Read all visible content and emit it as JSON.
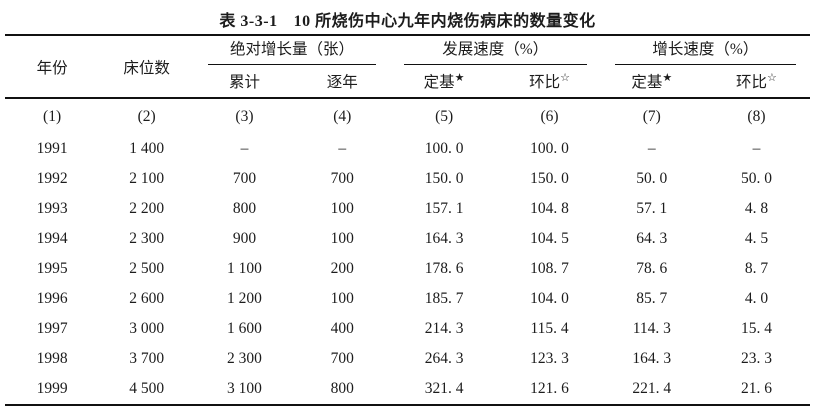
{
  "title": {
    "tag": "表 3-3-1",
    "text": "10 所烧伤中心九年内烧伤病床的数量变化"
  },
  "table": {
    "header": {
      "col_year": "年份",
      "col_beds": "床位数",
      "groups": [
        {
          "label": "绝对增长量（张）",
          "subs": [
            {
              "text": "累计",
              "mark": ""
            },
            {
              "text": "逐年",
              "mark": ""
            }
          ]
        },
        {
          "label": "发展速度（%）",
          "subs": [
            {
              "text": "定基",
              "mark": "★"
            },
            {
              "text": "环比",
              "mark": "☆"
            }
          ]
        },
        {
          "label": "增长速度（%）",
          "subs": [
            {
              "text": "定基",
              "mark": "★"
            },
            {
              "text": "环比",
              "mark": "☆"
            }
          ]
        }
      ],
      "col_numbers": [
        "(1)",
        "(2)",
        "(3)",
        "(4)",
        "(5)",
        "(6)",
        "(7)",
        "(8)"
      ]
    },
    "rows": [
      [
        "1991",
        "1 400",
        "–",
        "–",
        "100. 0",
        "100. 0",
        "–",
        "–"
      ],
      [
        "1992",
        "2 100",
        "700",
        "700",
        "150. 0",
        "150. 0",
        "50. 0",
        "50. 0"
      ],
      [
        "1993",
        "2 200",
        "800",
        "100",
        "157. 1",
        "104. 8",
        "57. 1",
        "4. 8"
      ],
      [
        "1994",
        "2 300",
        "900",
        "100",
        "164. 3",
        "104. 5",
        "64. 3",
        "4. 5"
      ],
      [
        "1995",
        "2 500",
        "1 100",
        "200",
        "178. 6",
        "108. 7",
        "78. 6",
        "8. 7"
      ],
      [
        "1996",
        "2 600",
        "1 200",
        "100",
        "185. 7",
        "104. 0",
        "85. 7",
        "4. 0"
      ],
      [
        "1997",
        "3 000",
        "1 600",
        "400",
        "214. 3",
        "115. 4",
        "114. 3",
        "15. 4"
      ],
      [
        "1998",
        "3 700",
        "2 300",
        "700",
        "264. 3",
        "123. 3",
        "164. 3",
        "23. 3"
      ],
      [
        "1999",
        "4 500",
        "3 100",
        "800",
        "321. 4",
        "121. 6",
        "221. 4",
        "21. 6"
      ]
    ]
  }
}
